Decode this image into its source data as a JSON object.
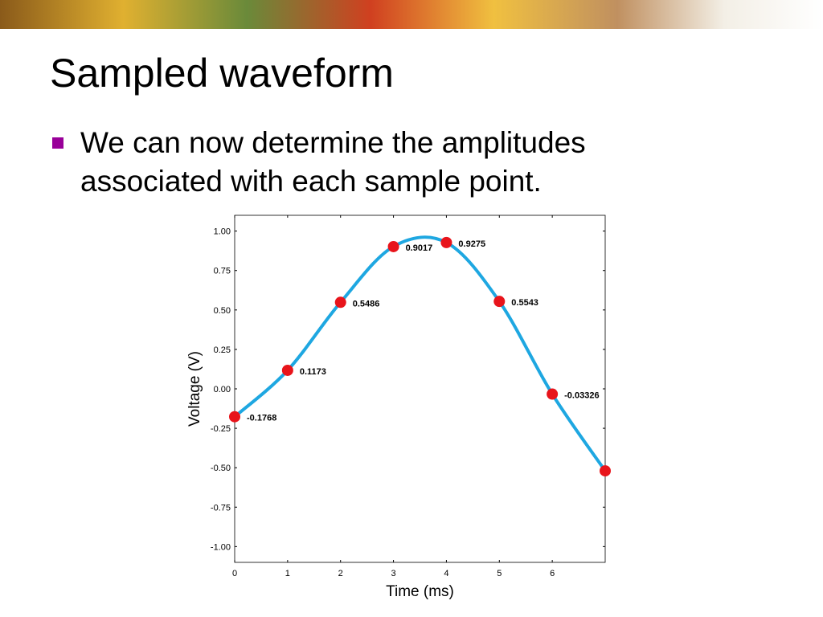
{
  "slide": {
    "title": "Sampled waveform",
    "bullets": [
      "We can now determine the amplitudes",
      "associated with each sample point."
    ]
  },
  "chart_data": {
    "type": "line",
    "x_label": "Time (ms)",
    "y_label": "Voltage (V)",
    "x": [
      0,
      1,
      2,
      3,
      4,
      5,
      6,
      7
    ],
    "series": [
      {
        "color": "#1ea7e1",
        "marker_color": "#e8141b",
        "values": [
          -0.1768,
          0.1173,
          0.5486,
          0.9017,
          0.9275,
          0.5543,
          -0.03326,
          -0.52
        ],
        "value_labels": [
          "-0.1768",
          "0.1173",
          "0.5486",
          "0.9017",
          "0.9275",
          "0.5543",
          "-0.03326",
          null
        ]
      }
    ],
    "xlim": [
      0,
      7
    ],
    "xticks": [
      0,
      1,
      2,
      3,
      4,
      5,
      6
    ],
    "ylim": [
      -1.1,
      1.1
    ],
    "yticks": [
      {
        "value": -1,
        "label": "-1.00"
      },
      {
        "value": -0.75,
        "label": "-0.75"
      },
      {
        "value": -0.5,
        "label": "-0.50"
      },
      {
        "value": -0.25,
        "label": "-0.25"
      },
      {
        "value": 0,
        "label": "0.00"
      },
      {
        "value": 0.25,
        "label": "0.25"
      },
      {
        "value": 0.5,
        "label": "0.50"
      },
      {
        "value": 0.75,
        "label": "0.75"
      },
      {
        "value": 1,
        "label": "1.00"
      }
    ],
    "grid": false
  }
}
